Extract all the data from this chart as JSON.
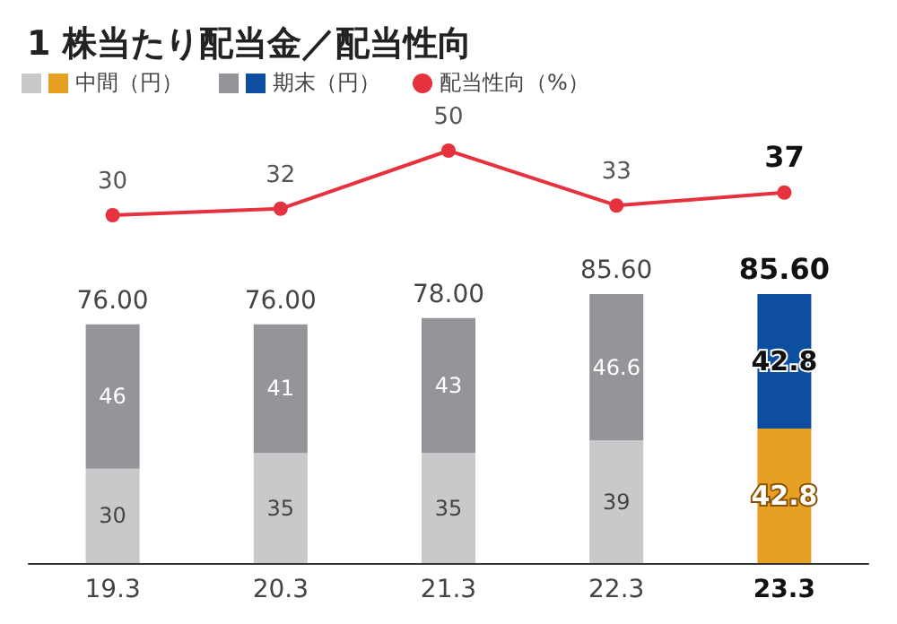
{
  "chart_data": [
    {
      "type": "line",
      "title": "1 株当たり配当金／配当性向",
      "categories": [
        "19.3",
        "20.3",
        "21.3",
        "22.3",
        "23.3"
      ],
      "legend": "top",
      "marker": "circle",
      "line_style": "solid",
      "data_labels": true,
      "tick_labels": false,
      "series": [
        {
          "name": "配当性向（%）",
          "color": "#e6323e",
          "values": [
            30,
            32,
            50,
            33,
            37
          ]
        }
      ]
    },
    {
      "type": "bar",
      "categories": [
        "19.3",
        "20.3",
        "21.3",
        "22.3",
        "23.3"
      ],
      "stacked": true,
      "data_labels": true,
      "tick_labels": "x",
      "legend": "top left",
      "series": [
        {
          "name": "中間（円）",
          "type": "bar",
          "color": "#c8c9cb",
          "colors": [
            "#c8c9cb",
            "#c8c9cb",
            "#c8c9cb",
            "#c8c9cb",
            "#e6a024"
          ],
          "values": [
            30,
            35,
            35,
            39,
            42.8
          ]
        },
        {
          "name": "期末（円）",
          "type": "bar",
          "color": "#939598",
          "colors": [
            "#939598",
            "#939598",
            "#939598",
            "#939598",
            "#0d4ea0"
          ],
          "values": [
            46,
            41,
            43,
            46.6,
            42.8
          ]
        }
      ],
      "totals": [
        "76.00",
        "76.00",
        "78.00",
        "85.60",
        "85.60"
      ]
    }
  ]
}
